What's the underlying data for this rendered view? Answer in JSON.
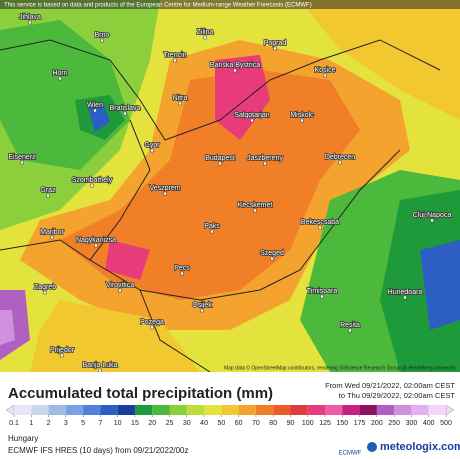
{
  "banner": "This service is based on data and products of the European Centre for Medium-range Weather Forecasts (ECMWF)",
  "attribution": "Map data © OpenStreetMap contributors, rendering GIScience Research Group @ Heidelberg University",
  "cities": [
    "Jihlava",
    "Brno",
    "Zilina",
    "Poprad",
    "Trencin",
    "Banska Bystrica",
    "Kosice",
    "Horn",
    "Wien",
    "Bratislava",
    "Nitra",
    "Salgotarjan",
    "Miskolc",
    "Gyor",
    "Eisenerz",
    "Szombathely",
    "Graz",
    "Veszprem",
    "Budapest",
    "Jaszbereny",
    "Debrecen",
    "Kecskemet",
    "Maribor",
    "Nagykanizsa",
    "Paks",
    "Bekescsaba",
    "Pecs",
    "Szeged",
    "Zagreb",
    "Virovitica",
    "Osijek",
    "Timisoara",
    "Hunedoara",
    "Cluj-Napoca",
    "Resita",
    "Pozega",
    "Prijedor",
    "Banja Luka"
  ],
  "legend": {
    "title": "Accumulated total precipitation (mm)",
    "period_from": "From Wed 09/21/2022, 02:00am CEST",
    "period_to": "to Thu 09/29/2022, 02:00am CEST",
    "labels": [
      "0.1",
      "1",
      "2",
      "3",
      "5",
      "7",
      "10",
      "15",
      "20",
      "25",
      "30",
      "40",
      "50",
      "60",
      "70",
      "80",
      "90",
      "100",
      "125",
      "150",
      "175",
      "200",
      "250",
      "300",
      "400",
      "500"
    ],
    "colors": [
      "#e6e6f4",
      "#c8d6ee",
      "#a0bae2",
      "#7aa2e2",
      "#4f82d8",
      "#2c5ec4",
      "#1a3c9c",
      "#1f9a3a",
      "#4cb83c",
      "#8ccf3c",
      "#bedd3c",
      "#e4e33e",
      "#f2c830",
      "#f4a32e",
      "#f07f28",
      "#ea5a2a",
      "#e03c3c",
      "#e83c7a",
      "#f05ca2",
      "#c82080",
      "#901060",
      "#b060c0",
      "#d090e0",
      "#e2b2f0",
      "#f2d6f8"
    ]
  },
  "footer": {
    "region": "Hungary",
    "model": "ECMWF IFS HRES (10 days) from 09/21/2022/00z",
    "logo_ecmwf": "ECMWF",
    "logo_site": "meteologix.com"
  }
}
